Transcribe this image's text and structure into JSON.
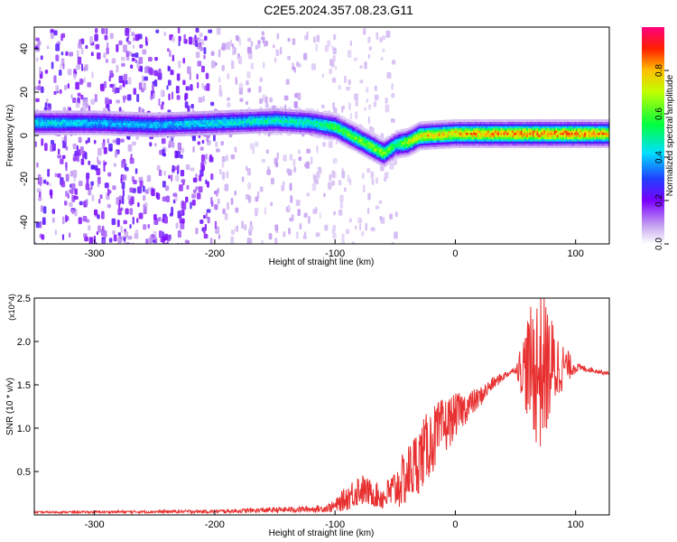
{
  "figure_title": "C2E5.2024.357.08.23.G11",
  "chart_data": [
    {
      "type": "heatmap",
      "title": "",
      "xlabel": "Height of straight line (km)",
      "ylabel": "Frequency (Hz)",
      "xlim": [
        -350,
        128
      ],
      "ylim": [
        -50,
        50
      ],
      "x_ticks": [
        -300,
        -200,
        -100,
        0,
        100
      ],
      "y_ticks": [
        -40,
        -20,
        0,
        20,
        40
      ],
      "colorbar": {
        "label": "Normalized spectral amplitude",
        "range": [
          0,
          1
        ],
        "ticks": [
          0.0,
          0.2,
          0.4,
          0.6,
          0.8
        ],
        "colors": [
          "#ffffff",
          "#c8a8f0",
          "#7a00ff",
          "#2040ff",
          "#00e0ff",
          "#00ff40",
          "#c0ff00",
          "#ffc000",
          "#ff2000",
          "#ff0080"
        ]
      },
      "ridge": {
        "x": [
          -350,
          -300,
          -250,
          -200,
          -150,
          -120,
          -100,
          -80,
          -60,
          -50,
          -40,
          -30,
          0,
          50,
          100,
          128
        ],
        "frequency": [
          6,
          6,
          5,
          6,
          7,
          6,
          4,
          -2,
          -8,
          -4,
          -3,
          0,
          1,
          1,
          1,
          1
        ],
        "peak_amplitude": [
          0.5,
          0.45,
          0.45,
          0.5,
          0.55,
          0.55,
          0.65,
          0.7,
          0.75,
          0.6,
          0.8,
          0.85,
          0.9,
          0.95,
          0.95,
          0.9
        ]
      }
    },
    {
      "type": "line",
      "title": "",
      "xlabel": "Height of straight line (km)",
      "ylabel": "SNR (10 * v/v)",
      "y_multiplier": "(x10^4)",
      "xlim": [
        -350,
        128
      ],
      "ylim": [
        0,
        2.5
      ],
      "x_ticks": [
        -300,
        -200,
        -100,
        0,
        100
      ],
      "y_ticks": [
        0.5,
        1.0,
        1.5,
        2.0,
        2.5
      ],
      "line_color": "#e83030",
      "envelope": {
        "x": [
          -350,
          -200,
          -110,
          -100,
          -90,
          -80,
          -70,
          -60,
          -50,
          -40,
          -30,
          -20,
          -10,
          0,
          10,
          20,
          30,
          40,
          50,
          60,
          70,
          80,
          90,
          100,
          110,
          128
        ],
        "mean": [
          0.03,
          0.04,
          0.07,
          0.1,
          0.2,
          0.3,
          0.25,
          0.2,
          0.3,
          0.45,
          0.65,
          0.85,
          1.0,
          1.15,
          1.25,
          1.35,
          1.5,
          1.6,
          1.68,
          1.7,
          1.68,
          1.7,
          1.72,
          1.7,
          1.68,
          1.63
        ],
        "spread": [
          0.01,
          0.02,
          0.04,
          0.07,
          0.15,
          0.2,
          0.15,
          0.15,
          0.25,
          0.35,
          0.4,
          0.4,
          0.35,
          0.25,
          0.18,
          0.12,
          0.08,
          0.05,
          0.03,
          0.6,
          1.0,
          0.6,
          0.25,
          0.06,
          0.03,
          0.02
        ]
      }
    }
  ]
}
